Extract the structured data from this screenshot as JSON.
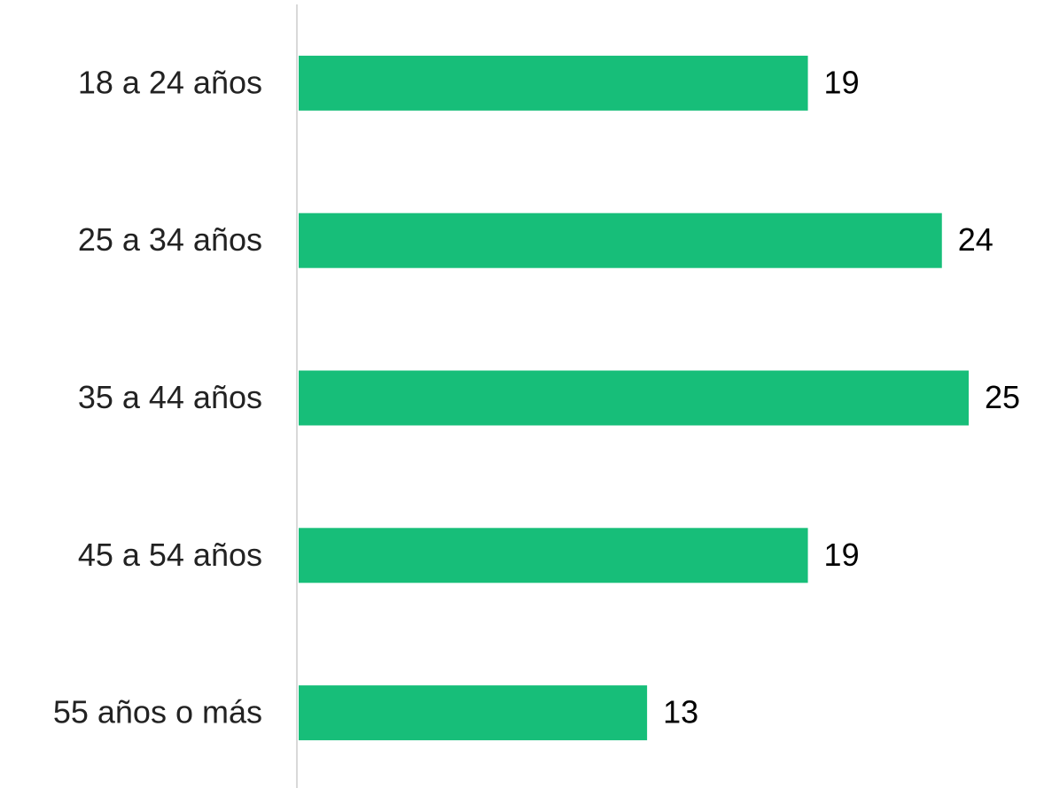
{
  "chart_data": {
    "type": "bar",
    "categories": [
      "18 a 24 años",
      "25 a 34 años",
      "35 a 44 años",
      "45 a 54 años",
      "55 años o más"
    ],
    "values": [
      19,
      24,
      25,
      19,
      13
    ],
    "color": "#17be79",
    "xlim": [
      0,
      25
    ]
  }
}
